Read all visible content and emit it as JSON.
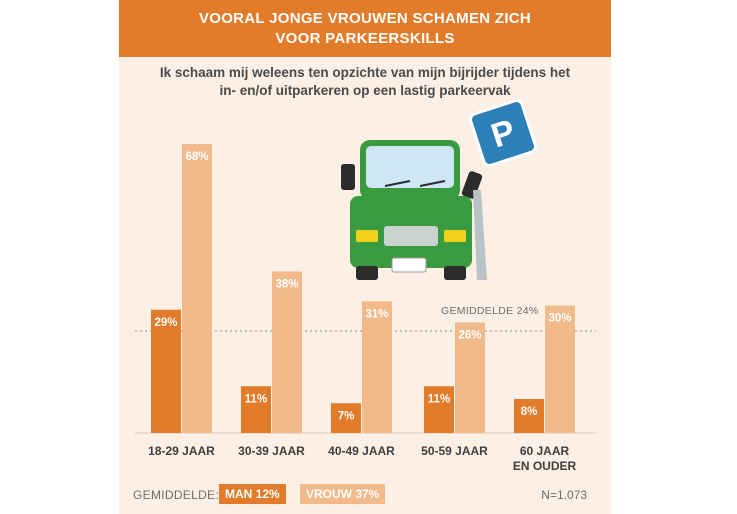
{
  "header": {
    "title_line1": "VOORAL JONGE VROUWEN SCHAMEN ZICH",
    "title_line2": "VOOR PARKEERSKILLS"
  },
  "subtitle": {
    "line1": "Ik schaam mij weleens ten opzichte van mijn bijrijder tijdens het",
    "line2": "in- en/of uitparkeren op een lastig parkeervak"
  },
  "sign": {
    "letter": "P"
  },
  "average_line": {
    "label": "GEMIDDELDE 24%",
    "value": 24
  },
  "footer": {
    "avg_label": "GEMIDDELDE:",
    "man": "MAN 12%",
    "vrouw": "VROUW 37%",
    "n": "N=1.073"
  },
  "colors": {
    "man": "#e27b2a",
    "vrouw": "#f2b98b",
    "banner": "#e27b2a",
    "background": "#fcefe5",
    "truck": "#3a9a3f",
    "sign": "#2d7fb8"
  },
  "chart_data": {
    "type": "bar",
    "categories": [
      [
        "18-29 JAAR"
      ],
      [
        "30-39 JAAR"
      ],
      [
        "40-49 JAAR"
      ],
      [
        "50-59 JAAR"
      ],
      [
        "60 JAAR",
        "EN OUDER"
      ]
    ],
    "series": [
      {
        "name": "MAN",
        "values": [
          29,
          11,
          7,
          11,
          8
        ],
        "labels": [
          "29%",
          "11%",
          "7%",
          "11%",
          "8%"
        ]
      },
      {
        "name": "VROUW",
        "values": [
          68,
          38,
          31,
          26,
          30
        ],
        "labels": [
          "68%",
          "38%",
          "31%",
          "26%",
          "30%"
        ]
      }
    ],
    "ylim": [
      0,
      68
    ],
    "reference_line": 24
  }
}
